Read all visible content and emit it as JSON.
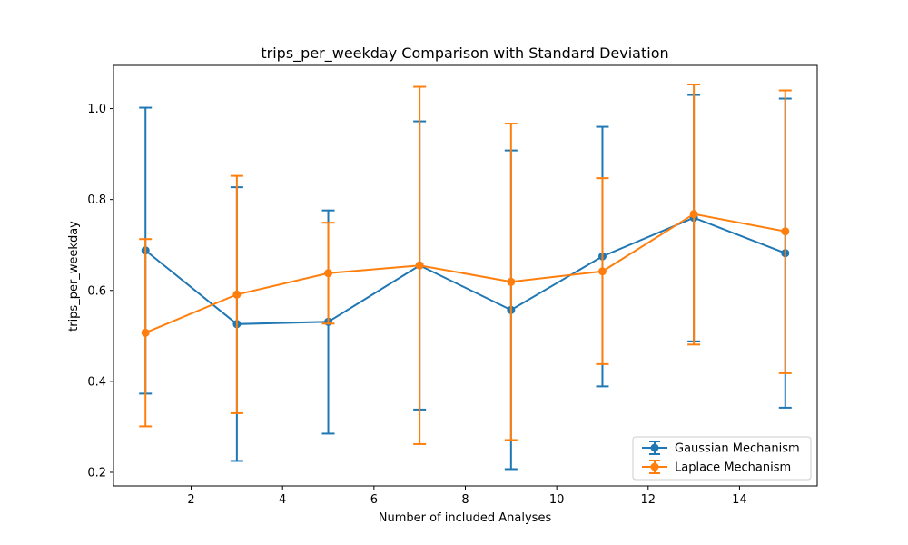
{
  "chart_data": {
    "type": "line",
    "title": "trips_per_weekday Comparison with Standard Deviation",
    "xlabel": "Number of included Analyses",
    "ylabel": "trips_per_weekday",
    "xlim": [
      0.3,
      15.7
    ],
    "ylim": [
      0.17,
      1.095
    ],
    "xticks": [
      2,
      4,
      6,
      8,
      10,
      12,
      14
    ],
    "yticks": [
      0.2,
      0.4,
      0.6,
      0.8,
      1.0
    ],
    "ytick_labels": [
      "0.2",
      "0.4",
      "0.6",
      "0.8",
      "1.0"
    ],
    "grid": false,
    "legend_position": "lower-right",
    "x": [
      1,
      3,
      5,
      7,
      9,
      11,
      13,
      15
    ],
    "series": [
      {
        "name": "Gaussian Mechanism",
        "color": "#1f77b4",
        "values": [
          0.688,
          0.526,
          0.531,
          0.655,
          0.557,
          0.675,
          0.76,
          0.682
        ],
        "err_low": [
          0.373,
          0.225,
          0.285,
          0.338,
          0.207,
          0.389,
          0.488,
          0.342
        ],
        "err_high": [
          1.002,
          0.827,
          0.776,
          0.972,
          0.908,
          0.96,
          1.03,
          1.022
        ]
      },
      {
        "name": "Laplace Mechanism",
        "color": "#ff7f0e",
        "values": [
          0.507,
          0.591,
          0.638,
          0.655,
          0.619,
          0.642,
          0.768,
          0.73
        ],
        "err_low": [
          0.301,
          0.33,
          0.527,
          0.262,
          0.271,
          0.438,
          0.481,
          0.418
        ],
        "err_high": [
          0.713,
          0.852,
          0.749,
          1.048,
          0.967,
          0.847,
          1.053,
          1.04
        ]
      }
    ]
  }
}
